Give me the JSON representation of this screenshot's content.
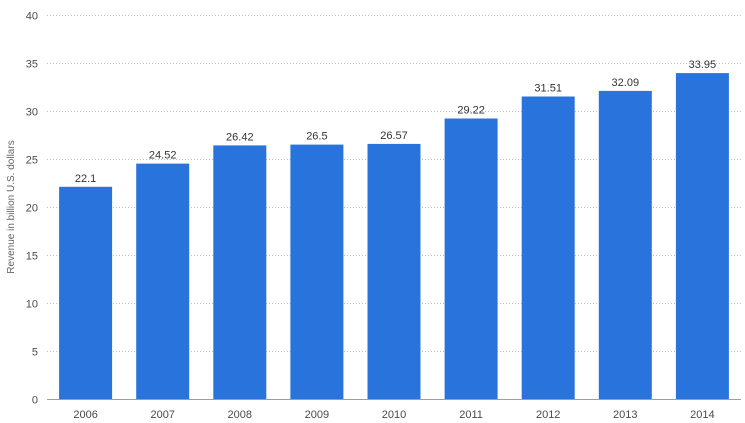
{
  "chart_data": {
    "type": "bar",
    "title": "",
    "xlabel": "",
    "ylabel": "Revenue in billion U.S. dollars",
    "categories": [
      "2006",
      "2007",
      "2008",
      "2009",
      "2010",
      "2011",
      "2012",
      "2013",
      "2014"
    ],
    "values": [
      22.1,
      24.52,
      26.42,
      26.5,
      26.57,
      29.22,
      31.51,
      32.09,
      33.95
    ],
    "value_labels": [
      "22.1",
      "24.52",
      "26.42",
      "26.5",
      "26.57",
      "29.22",
      "31.51",
      "32.09",
      "33.95"
    ],
    "ylim": [
      0,
      40
    ],
    "yticks": [
      0,
      5,
      10,
      15,
      20,
      25,
      30,
      35,
      40
    ],
    "grid": true,
    "legend": "none",
    "bar_color": "#2874dc"
  }
}
